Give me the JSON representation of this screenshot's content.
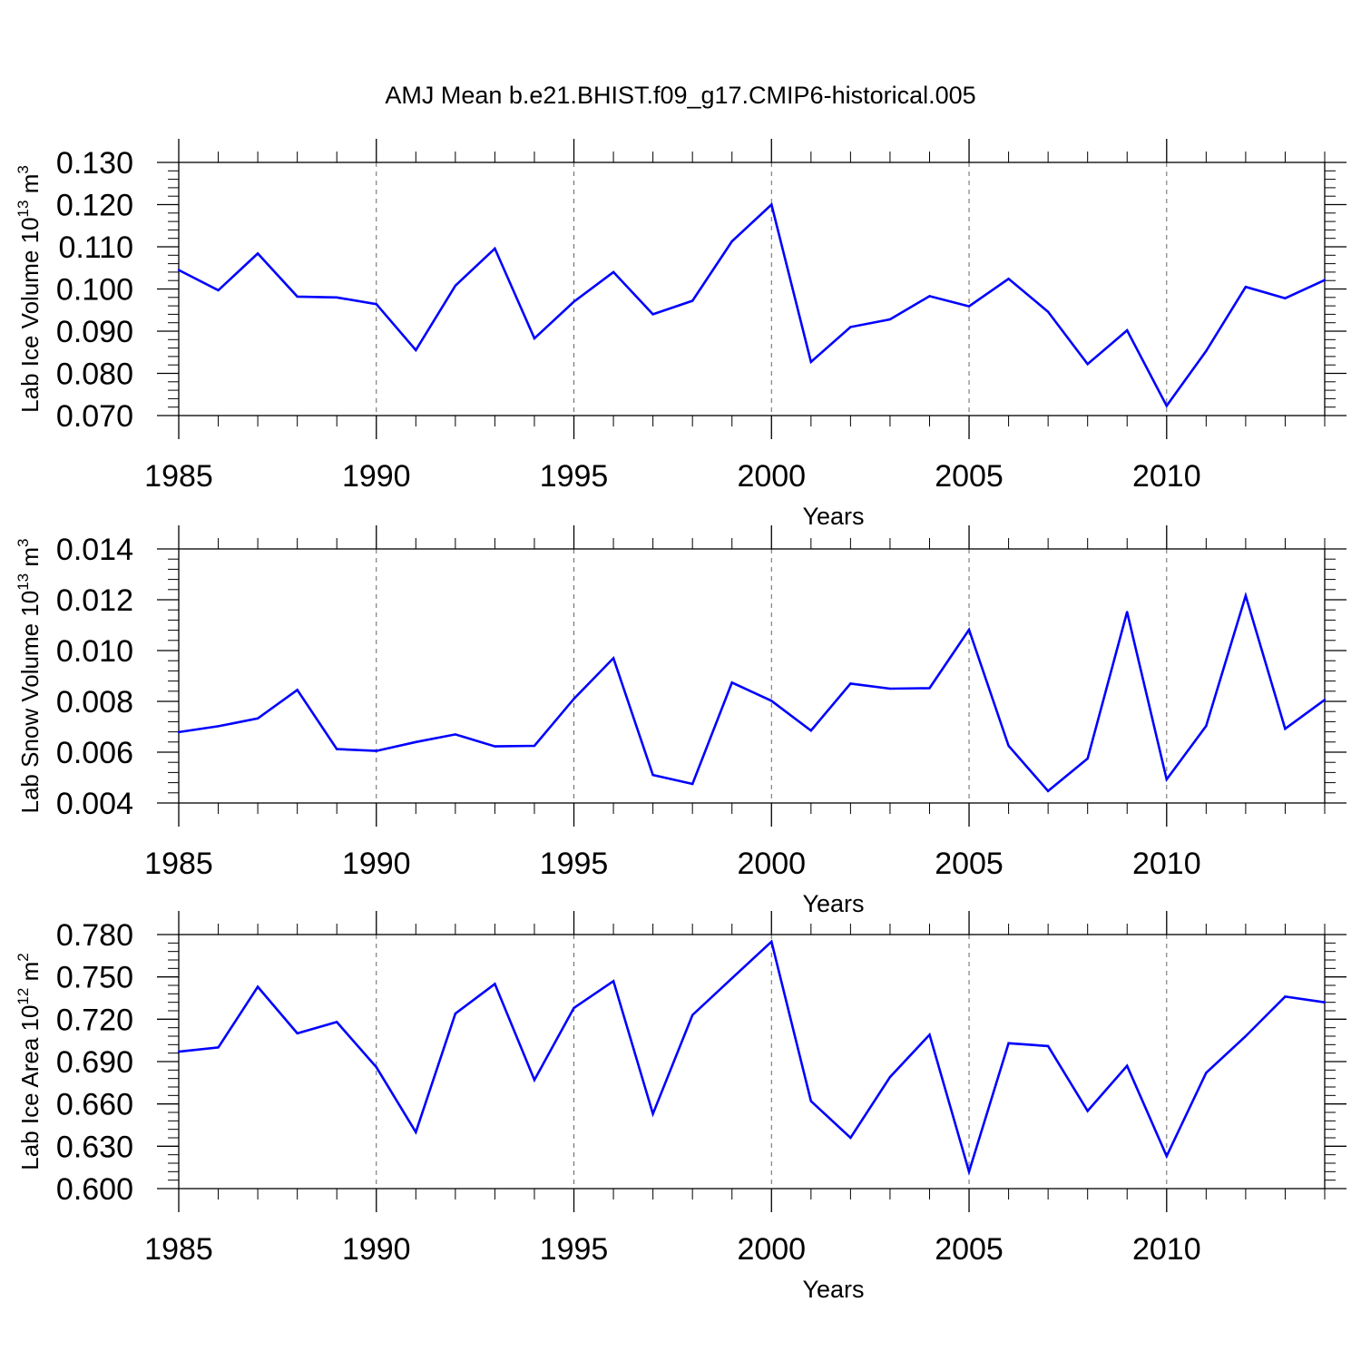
{
  "title": "AMJ Mean b.e21.BHIST.f09_g17.CMIP6-historical.005",
  "line_color": "#0000ff",
  "chart_data": [
    {
      "type": "line",
      "title": "AMJ Mean b.e21.BHIST.f09_g17.CMIP6-historical.005",
      "ylabel": {
        "main": "Lab Ice Volume 10",
        "exp": "13",
        "unit": " m",
        "unit_exp": "3"
      },
      "xlabel": "Years",
      "xlim": [
        1985,
        2014
      ],
      "ylim": [
        0.07,
        0.13
      ],
      "xticks": [
        1985,
        1990,
        1995,
        2000,
        2005,
        2010
      ],
      "yticks": [
        0.07,
        0.08,
        0.09,
        0.1,
        0.11,
        0.12,
        0.13
      ],
      "ytick_labels": [
        "0.070",
        "0.080",
        "0.090",
        "0.100",
        "0.110",
        "0.120",
        "0.130"
      ],
      "x": [
        1985,
        1986,
        1987,
        1988,
        1989,
        1990,
        1991,
        1992,
        1993,
        1994,
        1995,
        1996,
        1997,
        1998,
        1999,
        2000,
        2001,
        2002,
        2003,
        2004,
        2005,
        2006,
        2007,
        2008,
        2009,
        2010,
        2011,
        2012,
        2013,
        2014
      ],
      "series": [
        {
          "name": "Lab Ice Volume",
          "values": [
            0.1045,
            0.0997,
            0.1084,
            0.0982,
            0.098,
            0.0964,
            0.0855,
            0.1008,
            0.1096,
            0.0883,
            0.097,
            0.104,
            0.094,
            0.0972,
            0.1113,
            0.12,
            0.0827,
            0.091,
            0.0928,
            0.0983,
            0.0959,
            0.1024,
            0.0946,
            0.0822,
            0.0902,
            0.0723,
            0.0853,
            0.1005,
            0.0978,
            0.1021
          ]
        }
      ]
    },
    {
      "type": "line",
      "ylabel": {
        "main": "Lab Snow Volume 10",
        "exp": "13",
        "unit": " m",
        "unit_exp": "3"
      },
      "xlabel": "Years",
      "xlim": [
        1985,
        2014
      ],
      "ylim": [
        0.004,
        0.014
      ],
      "xticks": [
        1985,
        1990,
        1995,
        2000,
        2005,
        2010
      ],
      "yticks": [
        0.004,
        0.006,
        0.008,
        0.01,
        0.012,
        0.014
      ],
      "ytick_labels": [
        "0.004",
        "0.006",
        "0.008",
        "0.010",
        "0.012",
        "0.014"
      ],
      "x": [
        1985,
        1986,
        1987,
        1988,
        1989,
        1990,
        1991,
        1992,
        1993,
        1994,
        1995,
        1996,
        1997,
        1998,
        1999,
        2000,
        2001,
        2002,
        2003,
        2004,
        2005,
        2006,
        2007,
        2008,
        2009,
        2010,
        2011,
        2012,
        2013,
        2014
      ],
      "series": [
        {
          "name": "Lab Snow Volume",
          "values": [
            0.00679,
            0.00702,
            0.00733,
            0.00845,
            0.00612,
            0.00605,
            0.0064,
            0.0067,
            0.00623,
            0.00625,
            0.0081,
            0.0097,
            0.0051,
            0.00475,
            0.00874,
            0.00802,
            0.00685,
            0.0087,
            0.0085,
            0.00852,
            0.01082,
            0.00625,
            0.00447,
            0.00575,
            0.01152,
            0.00493,
            0.00703,
            0.01216,
            0.00692,
            0.00806
          ]
        }
      ]
    },
    {
      "type": "line",
      "ylabel": {
        "main": "Lab Ice Area 10",
        "exp": "12",
        "unit": " m",
        "unit_exp": "2"
      },
      "xlabel": "Years",
      "xlim": [
        1985,
        2014
      ],
      "ylim": [
        0.6,
        0.78
      ],
      "xticks": [
        1985,
        1990,
        1995,
        2000,
        2005,
        2010
      ],
      "yticks": [
        0.6,
        0.63,
        0.66,
        0.69,
        0.72,
        0.75,
        0.78
      ],
      "ytick_labels": [
        "0.600",
        "0.630",
        "0.660",
        "0.690",
        "0.720",
        "0.750",
        "0.780"
      ],
      "x": [
        1985,
        1986,
        1987,
        1988,
        1989,
        1990,
        1991,
        1992,
        1993,
        1994,
        1995,
        1996,
        1997,
        1998,
        1999,
        2000,
        2001,
        2002,
        2003,
        2004,
        2005,
        2006,
        2007,
        2008,
        2009,
        2010,
        2011,
        2012,
        2013,
        2014
      ],
      "series": [
        {
          "name": "Lab Ice Area",
          "values": [
            0.697,
            0.7,
            0.743,
            0.71,
            0.718,
            0.686,
            0.64,
            0.724,
            0.745,
            0.677,
            0.728,
            0.747,
            0.653,
            0.723,
            0.749,
            0.775,
            0.662,
            0.636,
            0.679,
            0.709,
            0.612,
            0.703,
            0.701,
            0.655,
            0.687,
            0.623,
            0.682,
            0.708,
            0.736,
            0.732
          ]
        }
      ]
    }
  ]
}
